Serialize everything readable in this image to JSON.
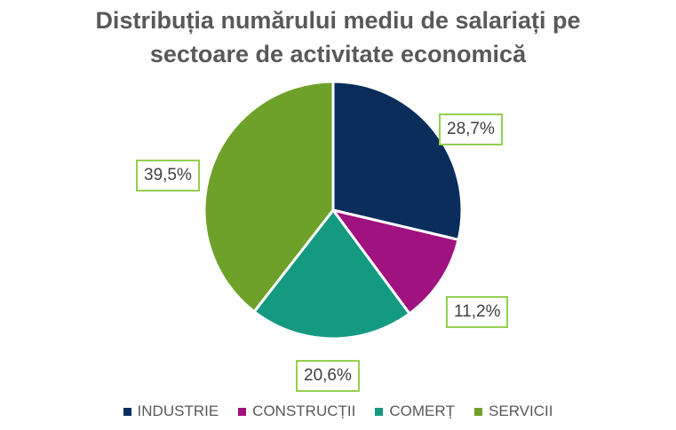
{
  "chart_data": {
    "type": "pie",
    "title_lines": [
      "Distribuția numărului mediu de salariați pe",
      "sectoare de activitate economică"
    ],
    "categories": [
      "INDUSTRIE",
      "CONSTRUCȚII",
      "COMERȚ",
      "SERVICII"
    ],
    "values": [
      28.7,
      11.2,
      20.6,
      39.5
    ],
    "labels": [
      "28,7%",
      "11,2%",
      "20,6%",
      "39,5%"
    ],
    "colors": [
      "#0a2d5c",
      "#a0127f",
      "#149a80",
      "#6ea12a"
    ],
    "label_border_color": "#92d050",
    "legend_position": "bottom"
  }
}
